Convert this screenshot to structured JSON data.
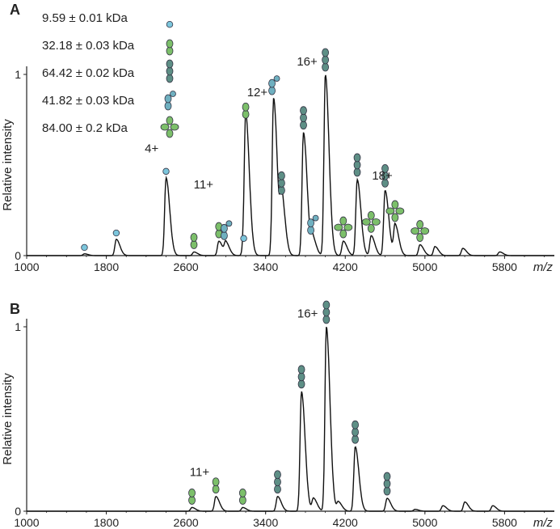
{
  "chart_data": [
    {
      "panel": "A",
      "type": "line",
      "ylabel": "Relative intensity",
      "xlabel": "m/z",
      "xlim": [
        1000,
        6300
      ],
      "ylim": [
        0,
        1
      ],
      "xticks": [
        1000,
        1800,
        2600,
        3400,
        4200,
        5000,
        5800
      ],
      "yticks": [
        0,
        1
      ],
      "legend": [
        {
          "text": "9.59 ± 0.01 kDa",
          "icon": "monomer",
          "color": "#7cc6dc"
        },
        {
          "text": "32.18 ± 0.03 kDa",
          "icon": "dimer",
          "color": "#7cbf6a"
        },
        {
          "text": "64.42 ± 0.02 kDa",
          "icon": "tetramer",
          "color": "#5e8f86"
        },
        {
          "text": "41.82 ± 0.03 kDa",
          "icon": "trimer",
          "color": "#6fb0c0"
        },
        {
          "text": "84.00 ± 0.2  kDa",
          "icon": "cross",
          "color": "#7cbf6a"
        }
      ],
      "charge_labels": [
        {
          "text": "4+",
          "x": 2390,
          "y": 0.57
        },
        {
          "text": "11+",
          "x": 2940,
          "y": 0.37
        },
        {
          "text": "12+",
          "x": 3485,
          "y": 0.88
        },
        {
          "text": "16+",
          "x": 3985,
          "y": 1.05
        },
        {
          "text": "18+",
          "x": 4740,
          "y": 0.42
        }
      ],
      "peaks": [
        {
          "x": 1580,
          "y": 0.01,
          "icon": "monomer"
        },
        {
          "x": 1900,
          "y": 0.09,
          "icon": "monomer"
        },
        {
          "x": 2400,
          "y": 0.43,
          "icon": "monomer"
        },
        {
          "x": 2680,
          "y": 0.02,
          "icon": "dimer"
        },
        {
          "x": 2930,
          "y": 0.08,
          "icon": "dimer"
        },
        {
          "x": 3000,
          "y": 0.07,
          "icon": "trimer"
        },
        {
          "x": 3180,
          "y": 0.06,
          "icon": "monomer"
        },
        {
          "x": 3200,
          "y": 0.74,
          "icon": "dimer"
        },
        {
          "x": 3480,
          "y": 0.87,
          "icon": "trimer"
        },
        {
          "x": 3560,
          "y": 0.32,
          "icon": "tetramer"
        },
        {
          "x": 3780,
          "y": 0.68,
          "icon": "tetramer"
        },
        {
          "x": 3870,
          "y": 0.1,
          "icon": "trimer"
        },
        {
          "x": 4000,
          "y": 1.0,
          "icon": "tetramer"
        },
        {
          "x": 4180,
          "y": 0.08,
          "icon": "cross"
        },
        {
          "x": 4320,
          "y": 0.42,
          "icon": "tetramer"
        },
        {
          "x": 4460,
          "y": 0.11,
          "icon": "cross"
        },
        {
          "x": 4600,
          "y": 0.36,
          "icon": "tetramer"
        },
        {
          "x": 4700,
          "y": 0.17,
          "icon": "cross"
        },
        {
          "x": 4950,
          "y": 0.06,
          "icon": "cross"
        },
        {
          "x": 5100,
          "y": 0.05,
          "icon": null
        },
        {
          "x": 5380,
          "y": 0.04,
          "icon": null
        },
        {
          "x": 5750,
          "y": 0.02,
          "icon": null
        }
      ]
    },
    {
      "panel": "B",
      "type": "line",
      "ylabel": "Relative intensity",
      "xlabel": "m/z",
      "xlim": [
        1000,
        6300
      ],
      "ylim": [
        0,
        1
      ],
      "xticks": [
        1000,
        1800,
        2600,
        3400,
        4200,
        5000,
        5800
      ],
      "yticks": [
        0,
        1
      ],
      "charge_labels": [
        {
          "text": "11+",
          "x": 2900,
          "y": 0.19
        },
        {
          "text": "16+",
          "x": 3990,
          "y": 1.05
        }
      ],
      "peaks": [
        {
          "x": 2660,
          "y": 0.02,
          "icon": "dimer"
        },
        {
          "x": 2900,
          "y": 0.08,
          "icon": "dimer"
        },
        {
          "x": 3170,
          "y": 0.02,
          "icon": "dimer"
        },
        {
          "x": 3520,
          "y": 0.08,
          "icon": "tetramer"
        },
        {
          "x": 3760,
          "y": 0.65,
          "icon": "tetramer"
        },
        {
          "x": 3880,
          "y": 0.07,
          "icon": null
        },
        {
          "x": 4010,
          "y": 1.0,
          "icon": "tetramer"
        },
        {
          "x": 4130,
          "y": 0.05,
          "icon": null
        },
        {
          "x": 4300,
          "y": 0.35,
          "icon": "tetramer"
        },
        {
          "x": 4620,
          "y": 0.07,
          "icon": "tetramer"
        },
        {
          "x": 4900,
          "y": 0.01,
          "icon": null
        },
        {
          "x": 5180,
          "y": 0.03,
          "icon": null
        },
        {
          "x": 5400,
          "y": 0.05,
          "icon": null
        },
        {
          "x": 5680,
          "y": 0.03,
          "icon": null
        }
      ]
    }
  ]
}
